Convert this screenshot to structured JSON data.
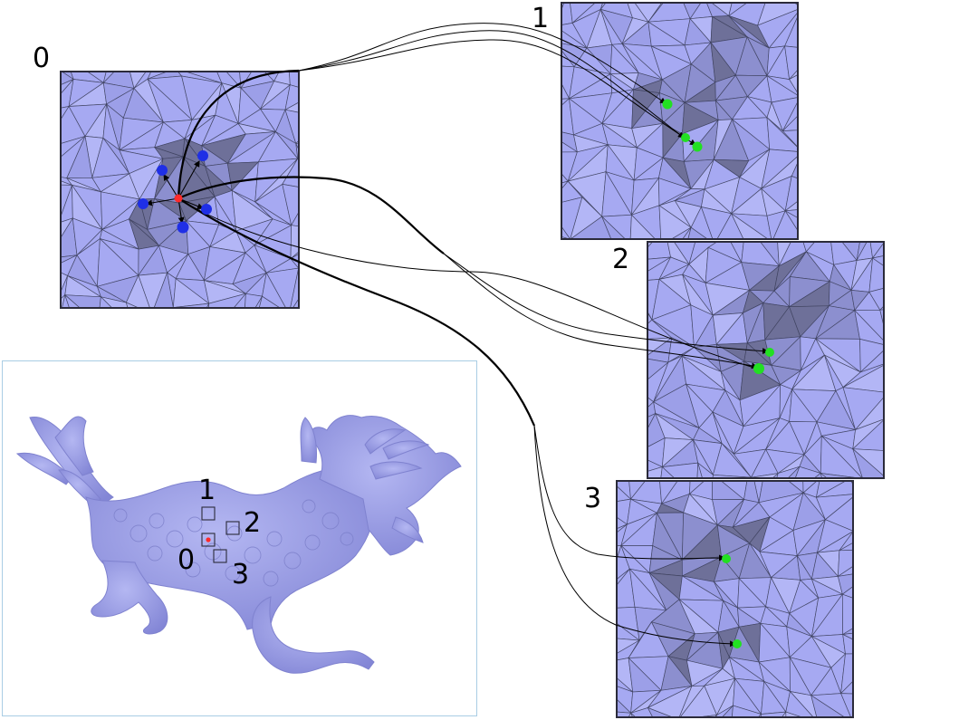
{
  "panels": [
    {
      "label": "0",
      "role": "source patch"
    },
    {
      "label": "1",
      "role": "target patch"
    },
    {
      "label": "2",
      "role": "target patch"
    },
    {
      "label": "3",
      "role": "target patch"
    }
  ],
  "inset": {
    "labels": [
      "1",
      "2",
      "0",
      "3"
    ]
  },
  "colors": {
    "mesh_fill": "#a6a9f2",
    "mesh_shade": "#8c8fcf",
    "mesh_dark": "#6e7099",
    "edge": "#3c3f5c",
    "source_point": "#ff2a2a",
    "neighbor_point": "#1f2fe6",
    "match_point": "#22e022",
    "frame_border": "#2b2b3a",
    "inset_border": "#a9cde4",
    "dragon": "#9b9ee6"
  },
  "icons": [
    "source-point-marker",
    "neighbor-point-marker",
    "match-point-marker"
  ]
}
